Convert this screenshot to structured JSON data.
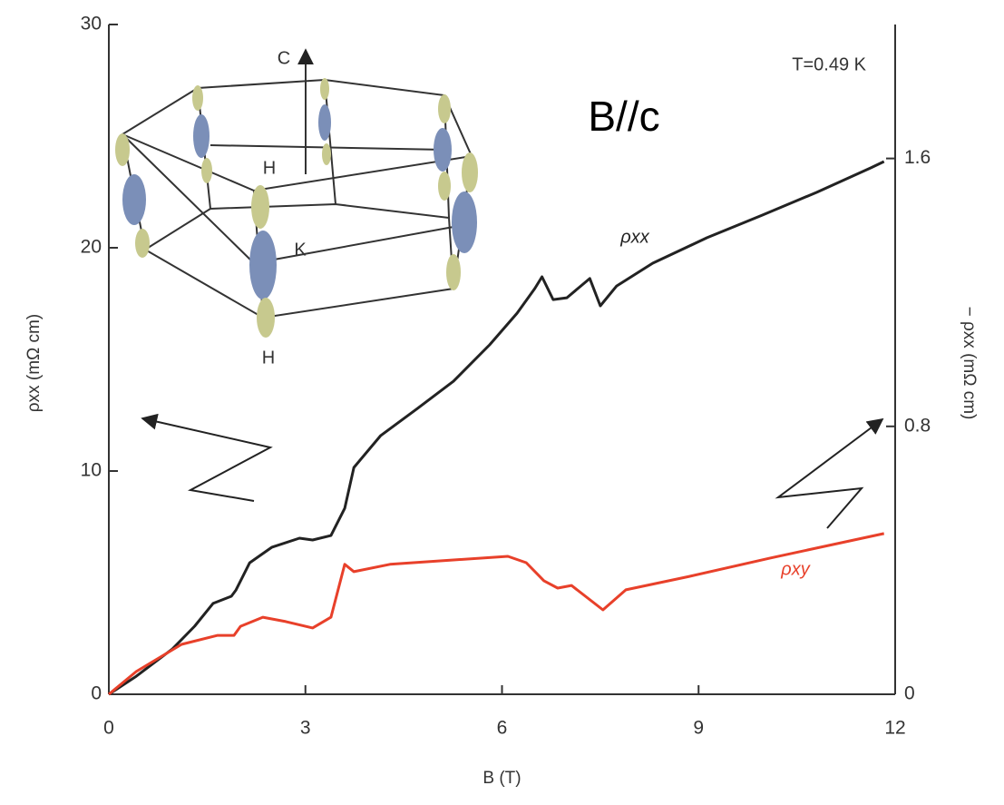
{
  "chart_data": {
    "type": "line",
    "xlabel": "B (T)",
    "ylabel": "ρxx (mΩ cm)",
    "y2label": "− ρxx (mΩ cm)",
    "xlim": [
      0,
      12
    ],
    "xticks": [
      0,
      3,
      6,
      9,
      12
    ],
    "ylim": [
      0,
      30
    ],
    "yticks": [
      0,
      10,
      20,
      30
    ],
    "y2lim": [
      0,
      2
    ],
    "y2ticks": [
      0,
      0.8,
      1.6
    ],
    "annotations": [
      "T=0.49 K",
      "B//c"
    ],
    "inset_labels": [
      "C",
      "H",
      "K",
      "H"
    ],
    "series": [
      {
        "name": "ρxx",
        "color": "#222222",
        "axis": "y",
        "x": [
          0,
          0.42,
          0.97,
          1.31,
          1.59,
          1.87,
          1.94,
          2.15,
          2.49,
          2.91,
          3.11,
          3.39,
          3.6,
          3.74,
          4.15,
          4.71,
          5.26,
          5.81,
          6.23,
          6.5,
          6.61,
          6.78,
          6.99,
          7.34,
          7.5,
          7.75,
          8.3,
          9.13,
          9.97,
          10.8,
          11.63,
          11.83
        ],
        "values": [
          0,
          0.81,
          2.03,
          3.05,
          4.07,
          4.39,
          4.67,
          5.89,
          6.59,
          6.99,
          6.91,
          7.11,
          8.33,
          10.16,
          11.59,
          12.8,
          14.02,
          15.65,
          17.07,
          18.17,
          18.7,
          17.68,
          17.76,
          18.62,
          17.4,
          18.29,
          19.31,
          20.45,
          21.46,
          22.48,
          23.58,
          23.86
        ]
      },
      {
        "name": "ρxy",
        "color": "#e8402a",
        "axis": "y2",
        "x": [
          0,
          0.42,
          1.11,
          1.66,
          1.91,
          2.01,
          2.35,
          2.7,
          3.11,
          3.39,
          3.6,
          3.74,
          4.29,
          5.26,
          6.09,
          6.37,
          6.64,
          6.85,
          7.06,
          7.54,
          7.89,
          8.86,
          10.1,
          11.83
        ],
        "values": [
          0,
          0.068,
          0.149,
          0.176,
          0.176,
          0.203,
          0.23,
          0.217,
          0.198,
          0.23,
          0.388,
          0.366,
          0.388,
          0.401,
          0.412,
          0.393,
          0.339,
          0.317,
          0.325,
          0.252,
          0.312,
          0.352,
          0.407,
          0.48
        ]
      }
    ]
  }
}
